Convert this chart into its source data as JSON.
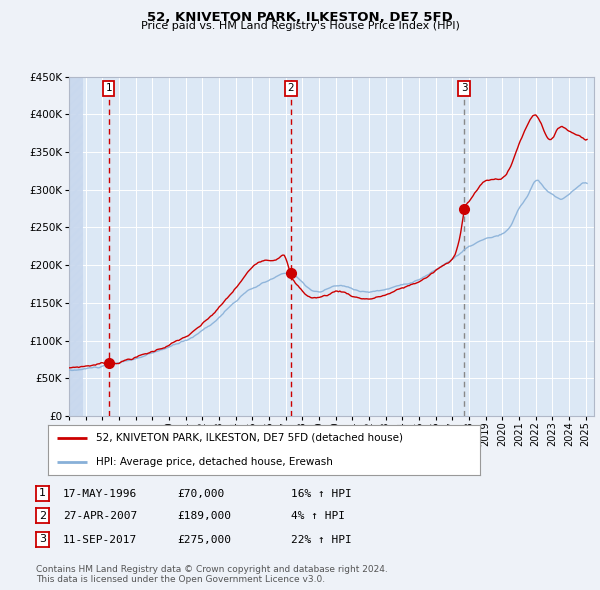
{
  "title": "52, KNIVETON PARK, ILKESTON, DE7 5FD",
  "subtitle": "Price paid vs. HM Land Registry's House Price Index (HPI)",
  "ylim": [
    0,
    450000
  ],
  "yticks": [
    0,
    50000,
    100000,
    150000,
    200000,
    250000,
    300000,
    350000,
    400000,
    450000
  ],
  "background_color": "#eef2f8",
  "plot_bg_color": "#dce8f5",
  "sale_dates": [
    1996.38,
    2007.32,
    2017.7
  ],
  "sale_prices": [
    70000,
    189000,
    275000
  ],
  "sale_labels": [
    "1",
    "2",
    "3"
  ],
  "sale_color": "#cc0000",
  "sale_dline_colors": [
    "#cc0000",
    "#cc0000",
    "#888888"
  ],
  "hpi_color": "#88b0d8",
  "legend_label_red": "52, KNIVETON PARK, ILKESTON, DE7 5FD (detached house)",
  "legend_label_blue": "HPI: Average price, detached house, Erewash",
  "table_rows": [
    {
      "num": "1",
      "date": "17-MAY-1996",
      "price": "£70,000",
      "hpi": "16% ↑ HPI"
    },
    {
      "num": "2",
      "date": "27-APR-2007",
      "price": "£189,000",
      "hpi": "4% ↑ HPI"
    },
    {
      "num": "3",
      "date": "11-SEP-2017",
      "price": "£275,000",
      "hpi": "22% ↑ HPI"
    }
  ],
  "footnote": "Contains HM Land Registry data © Crown copyright and database right 2024.\nThis data is licensed under the Open Government Licence v3.0.",
  "xmin": 1994.0,
  "xmax": 2025.5
}
